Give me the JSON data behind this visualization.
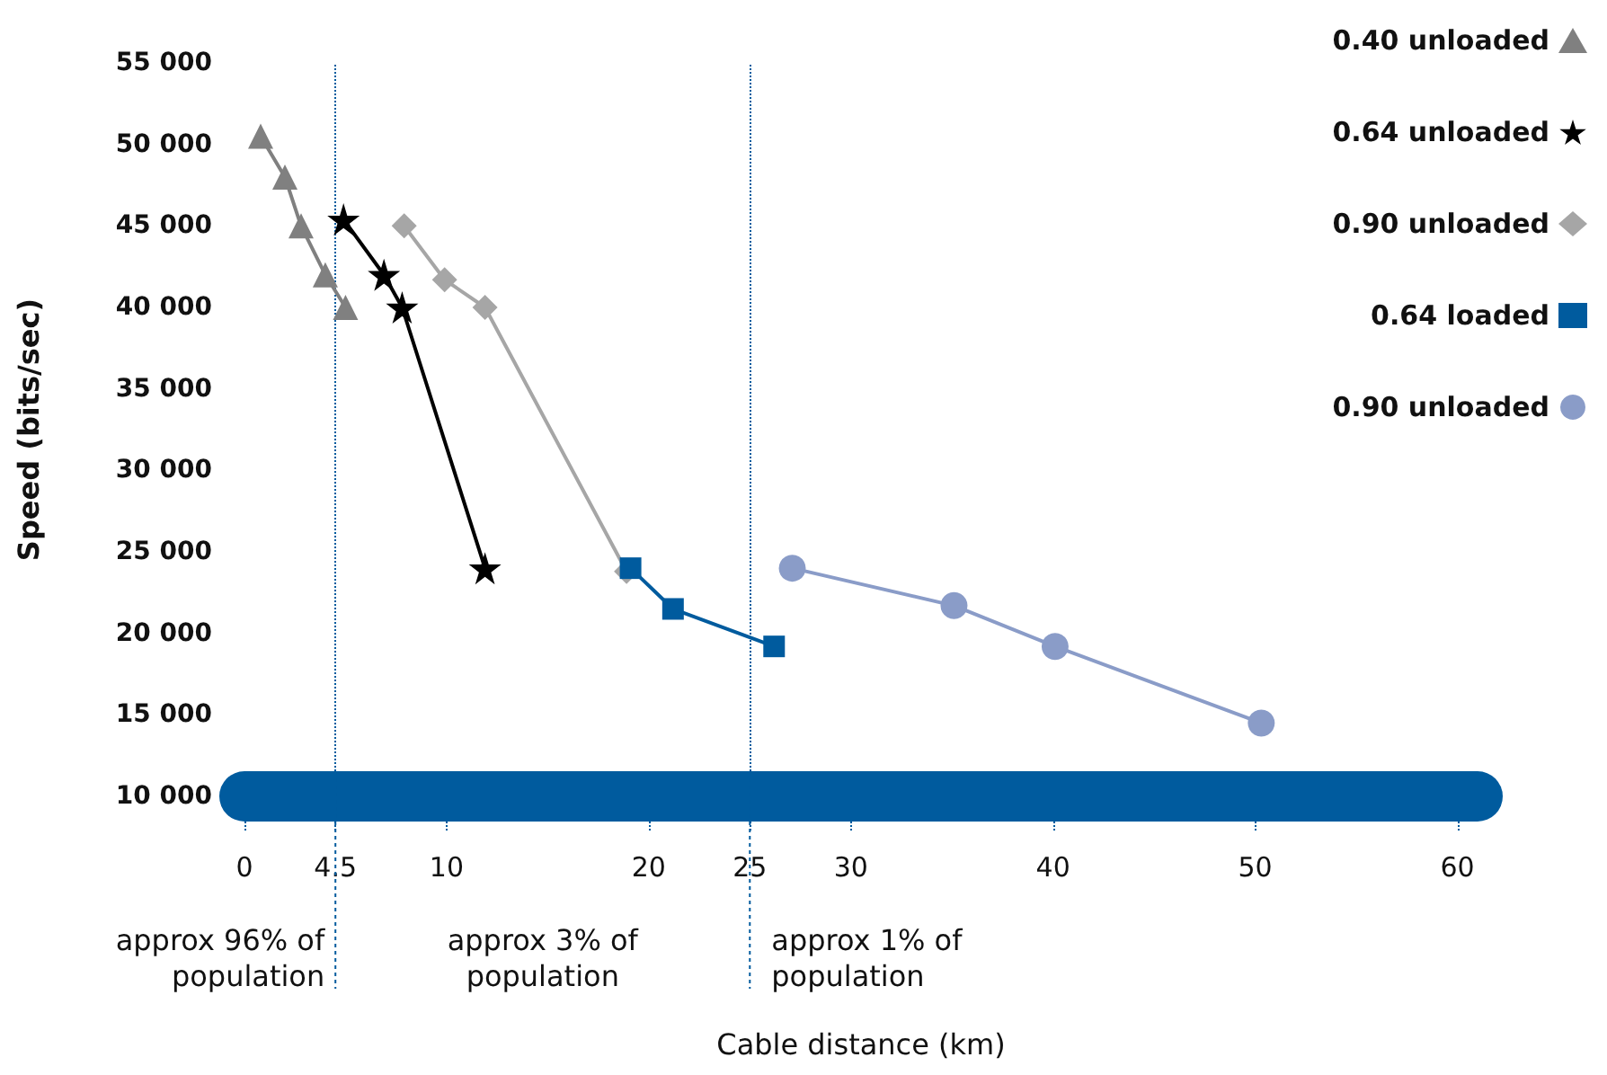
{
  "chart_data": {
    "type": "line",
    "xlabel": "Cable distance (km)",
    "ylabel": "Speed (bits/sec)",
    "xlim": [
      0,
      61
    ],
    "xticks": [
      0,
      4.5,
      10,
      20,
      25,
      30,
      40,
      50,
      60
    ],
    "ylim": [
      10000,
      55000
    ],
    "yticks": [
      {
        "value": 10000,
        "label": "10 000"
      },
      {
        "value": 15000,
        "label": "15 000"
      },
      {
        "value": 20000,
        "label": "20 000"
      },
      {
        "value": 25000,
        "label": "25 000"
      },
      {
        "value": 30000,
        "label": "30 000"
      },
      {
        "value": 35000,
        "label": "35 000"
      },
      {
        "value": 40000,
        "label": "40 000"
      },
      {
        "value": 45000,
        "label": "45 000"
      },
      {
        "value": 50000,
        "label": "50 000"
      },
      {
        "value": 55000,
        "label": "55 000"
      }
    ],
    "grid": false,
    "legend": "right",
    "series": [
      {
        "name": "0.40 unloaded",
        "color": "#808080",
        "marker": "triangle",
        "x": [
          0.8,
          2,
          2.8,
          4,
          5
        ],
        "values": [
          50500,
          48000,
          45000,
          42000,
          40000
        ]
      },
      {
        "name": "0.64 unloaded",
        "color": "#000000",
        "marker": "star",
        "x": [
          4.9,
          6.9,
          7.8,
          11.9
        ],
        "values": [
          45400,
          42000,
          40000,
          24000
        ]
      },
      {
        "name": "0.90 unloaded",
        "color": "#a6a6a6",
        "marker": "diamond",
        "x": [
          7.9,
          9.9,
          11.9,
          18.9
        ],
        "values": [
          45000,
          41700,
          40000,
          23800
        ]
      },
      {
        "name": "0.64 loaded",
        "color": "#005b9e",
        "marker": "square",
        "x": [
          19.1,
          21.2,
          26.2
        ],
        "values": [
          24000,
          21500,
          19200
        ]
      },
      {
        "name": "0.90 unloaded",
        "color": "#8a9cc8",
        "marker": "circle",
        "x": [
          27.1,
          35.1,
          40.1,
          50.3
        ],
        "values": [
          24000,
          21700,
          19200,
          14500
        ]
      }
    ],
    "ref_lines": [
      {
        "axis": "x",
        "value": 4.5,
        "color": "#005b9e",
        "line_style": "dotted"
      },
      {
        "axis": "x",
        "value": 25,
        "color": "#005b9e",
        "line_style": "dotted"
      }
    ],
    "annotations": [
      "approx 96% of\npopulation",
      "approx 3% of\npopulation",
      "approx 1% of\npopulation"
    ]
  }
}
